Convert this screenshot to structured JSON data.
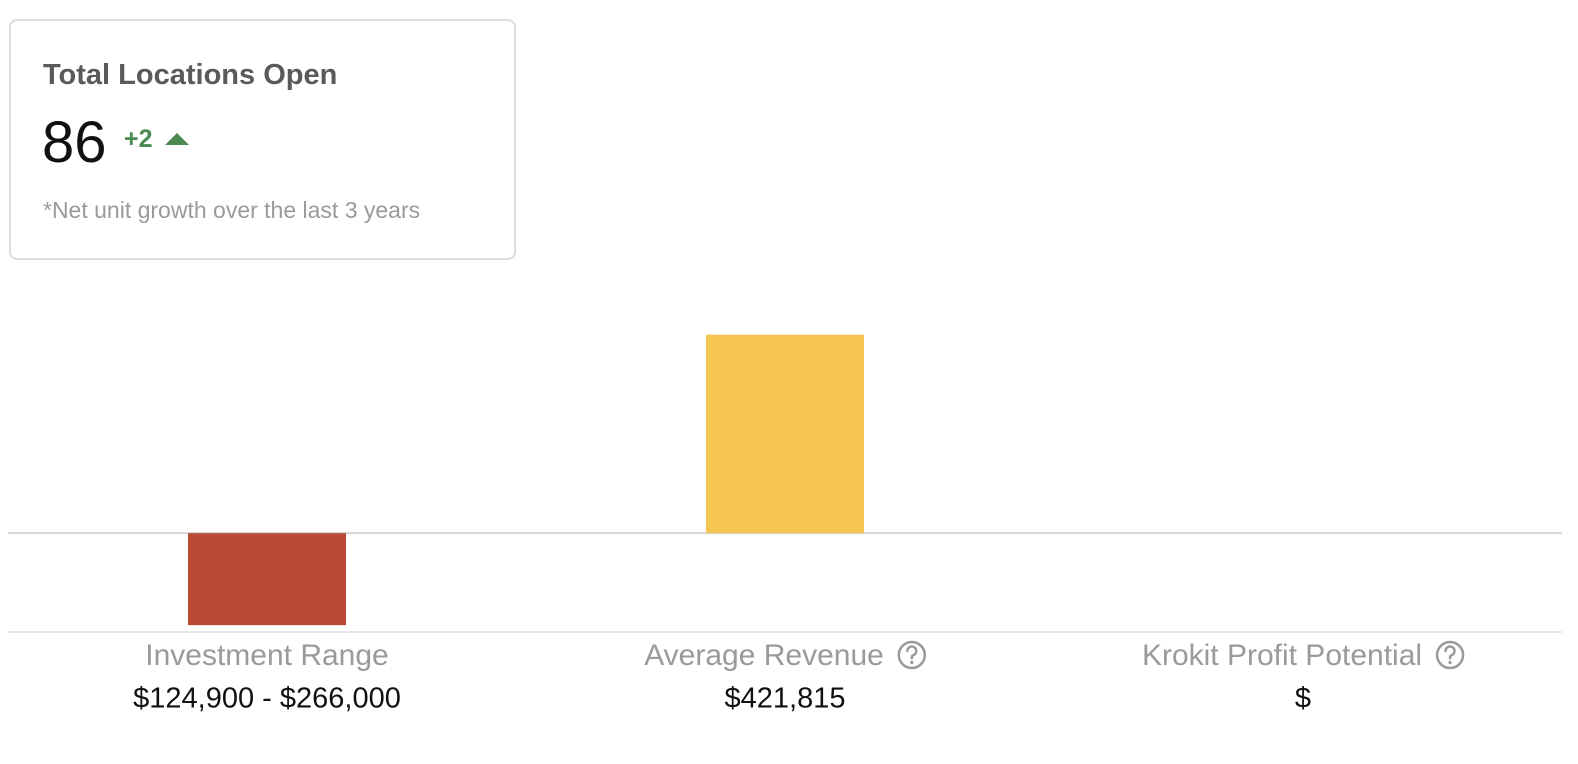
{
  "card": {
    "title": "Total Locations Open",
    "value": "86",
    "delta": "+2",
    "note": "*Net unit growth over the last 3 years"
  },
  "chart_data": {
    "type": "bar",
    "categories": [
      "Investment Range",
      "Average Revenue",
      "Krokit Profit Potential"
    ],
    "values": [
      -195450,
      421815,
      null
    ],
    "value_labels": [
      "$124,900 - $266,000",
      "$421,815",
      "$"
    ],
    "colors": [
      "#b94834",
      "#f5c551",
      "#f5c551"
    ],
    "ylim": [
      -210000,
      470000
    ]
  }
}
